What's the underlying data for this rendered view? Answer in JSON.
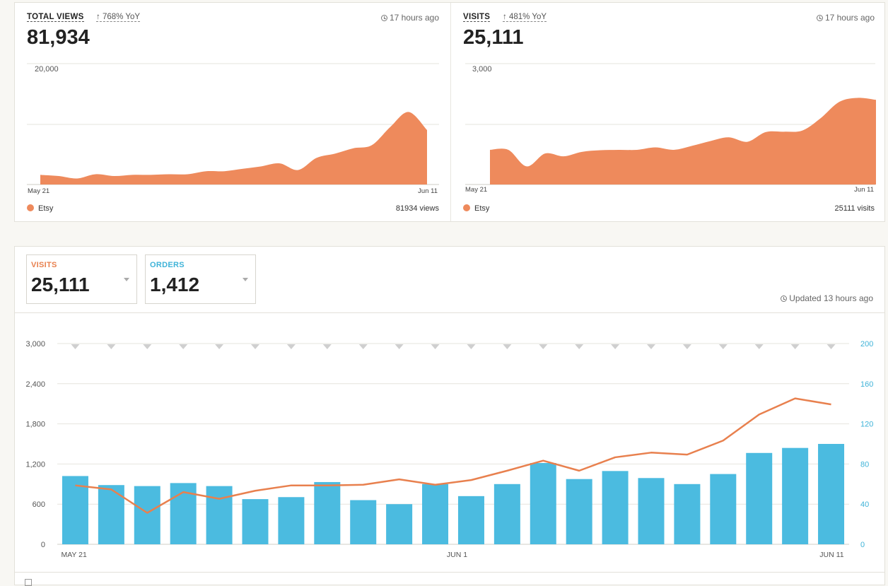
{
  "colors": {
    "etsy_orange": "#ee8a5c",
    "bar_blue": "#4bbbe0",
    "orders_blue": "#3fb3d8",
    "visits_orange": "#e8804e"
  },
  "views_card": {
    "label": "TOTAL VIEWS",
    "yoy": "768% YoY",
    "ago": "17 hours ago",
    "value": "81,934",
    "ymax_label": "20,000",
    "x_start": "May 21",
    "x_end": "Jun 11",
    "legend": "Etsy",
    "total": "81934 views",
    "ymax": 20000,
    "series": [
      1600,
      1400,
      1000,
      1700,
      1400,
      1600,
      1600,
      1700,
      1700,
      2200,
      2200,
      2600,
      3000,
      3500,
      2400,
      4400,
      5100,
      6000,
      6500,
      9500,
      12000,
      9000
    ]
  },
  "visits_card": {
    "label": "VISITS",
    "yoy": "481% YoY",
    "ago": "17 hours ago",
    "value": "25,111",
    "ymax_label": "3,000",
    "x_start": "May 21",
    "x_end": "Jun 11",
    "legend": "Etsy",
    "total": "25111 visits",
    "ymax": 3000,
    "series": [
      860,
      860,
      450,
      770,
      700,
      810,
      850,
      860,
      860,
      920,
      860,
      960,
      1080,
      1170,
      1060,
      1300,
      1310,
      1340,
      1650,
      2050,
      2150,
      2100
    ]
  },
  "bottom": {
    "visits_label": "VISITS",
    "visits_value": "25,111",
    "orders_label": "ORDERS",
    "orders_value": "1,412",
    "updated": "Updated 13 hours ago"
  },
  "chart_data": {
    "type": "bar",
    "x_tick_labels": [
      "MAY 21",
      "JUN 1",
      "JUN 11"
    ],
    "left_axis": {
      "ticks": [
        "0",
        "600",
        "1,200",
        "1,800",
        "2,400",
        "3,000"
      ],
      "range": [
        0,
        3000
      ]
    },
    "right_axis": {
      "ticks": [
        "0",
        "40",
        "80",
        "120",
        "160",
        "200"
      ],
      "range": [
        0,
        200
      ]
    },
    "series": [
      {
        "type": "bar",
        "axis": "right",
        "values": [
          68,
          59,
          58,
          61,
          58,
          45,
          47,
          62,
          44,
          40,
          60,
          48,
          60,
          81,
          65,
          73,
          66,
          60,
          70,
          91,
          96,
          100
        ]
      },
      {
        "type": "line",
        "axis": "left",
        "values": [
          880,
          820,
          470,
          780,
          680,
          800,
          880,
          880,
          890,
          970,
          890,
          960,
          1100,
          1250,
          1100,
          1300,
          1370,
          1340,
          1550,
          1940,
          2180,
          2090
        ]
      }
    ],
    "grid": true
  }
}
